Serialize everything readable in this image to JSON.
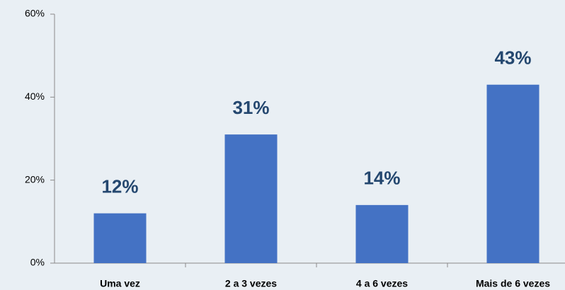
{
  "chart_data": {
    "type": "bar",
    "categories": [
      "Uma vez",
      "2 a 3 vezes",
      "4 a 6 vezes",
      "Mais de 6 vezes"
    ],
    "values": [
      12,
      31,
      14,
      43
    ],
    "value_labels": [
      "12%",
      "31%",
      "14%",
      "43%"
    ],
    "color": "#4472c4",
    "ylim": [
      0,
      60
    ],
    "yticks": [
      {
        "value": 0,
        "label": "0%"
      },
      {
        "value": 20,
        "label": "20%"
      },
      {
        "value": 40,
        "label": "40%"
      },
      {
        "value": 60,
        "label": "60%"
      }
    ],
    "grid": false
  }
}
